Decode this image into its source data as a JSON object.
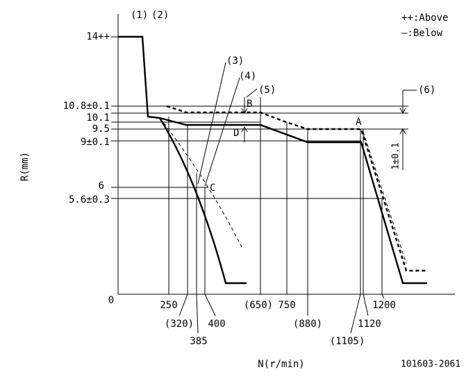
{
  "labels": {
    "p1": "(1)",
    "p2": "(2)",
    "p3": "(3)",
    "p4": "(4)",
    "p5": "(5)",
    "p6": "(6)",
    "above": "++:Above",
    "below": "—:Below",
    "A": "A",
    "B": "B",
    "C": "C",
    "D": "D",
    "tol": "1±0.1"
  },
  "y_axis": {
    "title": "R(mm)",
    "ticks": [
      "14++",
      "10.8±0.1",
      "10.1",
      "9.5",
      "9±0.1",
      "6",
      "5.6±0.3",
      "0"
    ]
  },
  "x_axis": {
    "title": "N(r/min)",
    "ticks": [
      "250",
      "(320)",
      "385",
      "400",
      "(650)",
      "750",
      "(880)",
      "1120",
      "(1105)",
      "1200"
    ]
  },
  "code": "101603-2061"
}
